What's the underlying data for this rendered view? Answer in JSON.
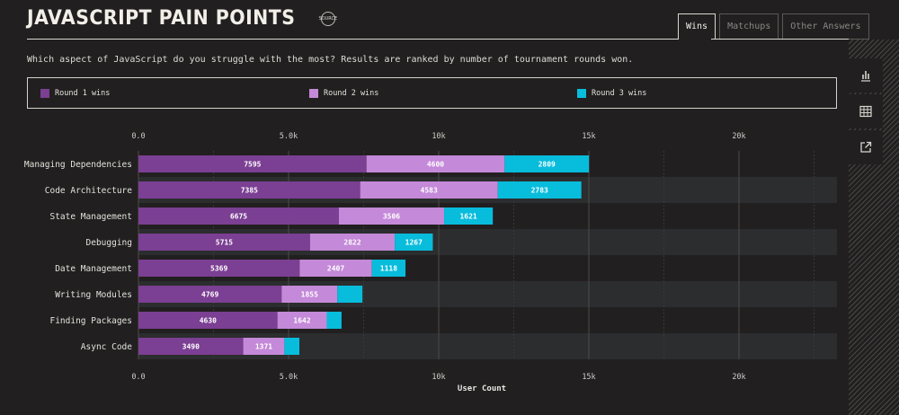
{
  "header": {
    "title": "JAVASCRIPT PAIN POINTS",
    "badge": "SOURCE"
  },
  "tabs": [
    {
      "label": "Wins",
      "active": true
    },
    {
      "label": "Matchups",
      "active": false
    },
    {
      "label": "Other Answers",
      "active": false
    }
  ],
  "subtitle": "Which aspect of JavaScript do you struggle with the most? Results are ranked by number of tournament rounds won.",
  "sidebar": {
    "icons": [
      "bar-chart-icon",
      "table-icon",
      "external-link-icon"
    ]
  },
  "chart_data": {
    "type": "bar",
    "orientation": "horizontal",
    "stacked": true,
    "categories": [
      "Managing Dependencies",
      "Code Architecture",
      "State Management",
      "Debugging",
      "Date Management",
      "Writing Modules",
      "Finding Packages",
      "Async Code"
    ],
    "series": [
      {
        "name": "Round 1 wins",
        "color": "#7b3f93",
        "values": [
          7595,
          7385,
          6675,
          5715,
          5369,
          4769,
          4630,
          3490
        ]
      },
      {
        "name": "Round 2 wins",
        "color": "#c489d8",
        "values": [
          4600,
          4583,
          3506,
          2822,
          2407,
          1855,
          1642,
          1371
        ]
      },
      {
        "name": "Round 3 wins",
        "color": "#08bcdc",
        "values": [
          2809,
          2783,
          1621,
          1267,
          1118,
          835,
          492,
          499
        ]
      }
    ],
    "xlim": [
      0,
      23000
    ],
    "xticks": [
      0,
      5000,
      10000,
      15000,
      20000
    ],
    "xtick_labels": [
      "0.0",
      "5.0k",
      "10k",
      "15k",
      "20k"
    ],
    "xlabel": "User Count",
    "ylabel": "",
    "legend_position": "top",
    "grid": true
  }
}
